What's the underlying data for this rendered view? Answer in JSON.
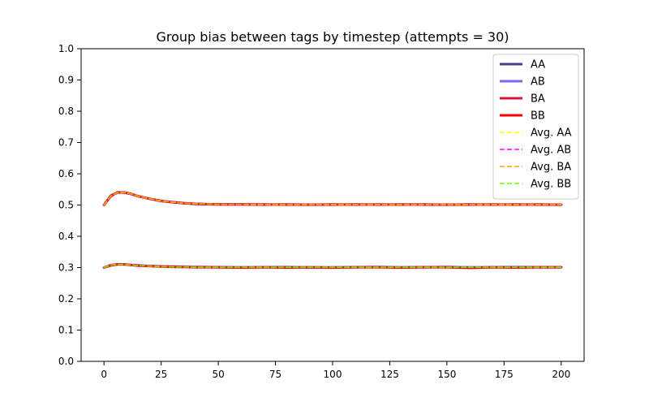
{
  "chart_data": {
    "type": "line",
    "title": "Group bias between tags by timestep (attempts = 30)",
    "xlabel": "",
    "ylabel": "",
    "xlim": [
      -10,
      210
    ],
    "ylim": [
      0.0,
      1.0
    ],
    "xticks": [
      0,
      25,
      50,
      75,
      100,
      125,
      150,
      175,
      200
    ],
    "xtick_labels": [
      "0",
      "25",
      "50",
      "75",
      "100",
      "125",
      "150",
      "175",
      "200"
    ],
    "yticks": [
      0.0,
      0.1,
      0.2,
      0.3,
      0.4,
      0.5,
      0.6,
      0.7,
      0.8,
      0.9,
      1.0
    ],
    "ytick_labels": [
      "0.0",
      "0.1",
      "0.2",
      "0.3",
      "0.4",
      "0.5",
      "0.6",
      "0.7",
      "0.8",
      "0.9",
      "1.0"
    ],
    "grid": false,
    "legend_position": "top-right",
    "x": [
      0,
      3,
      6,
      9,
      12,
      15,
      20,
      25,
      30,
      35,
      40,
      50,
      60,
      70,
      80,
      90,
      100,
      110,
      120,
      130,
      140,
      150,
      160,
      170,
      180,
      190,
      200
    ],
    "series": [
      {
        "name": "AA",
        "style": "solid",
        "color": "#483D8B",
        "values": [
          0.5,
          0.53,
          0.54,
          0.54,
          0.535,
          0.528,
          0.52,
          0.513,
          0.509,
          0.506,
          0.503,
          0.502,
          0.502,
          0.501,
          0.502,
          0.501,
          0.501,
          0.502,
          0.501,
          0.502,
          0.501,
          0.501,
          0.502,
          0.501,
          0.502,
          0.501,
          0.501
        ]
      },
      {
        "name": "AB",
        "style": "solid",
        "color": "#7B68EE",
        "values": [
          0.3,
          0.308,
          0.311,
          0.31,
          0.308,
          0.307,
          0.305,
          0.304,
          0.303,
          0.302,
          0.302,
          0.301,
          0.301,
          0.301,
          0.302,
          0.3,
          0.301,
          0.301,
          0.302,
          0.301,
          0.301,
          0.302,
          0.301,
          0.301,
          0.302,
          0.301,
          0.301
        ]
      },
      {
        "name": "BA",
        "style": "solid",
        "color": "#DC143C",
        "values": [
          0.5,
          0.528,
          0.541,
          0.54,
          0.535,
          0.528,
          0.52,
          0.513,
          0.509,
          0.506,
          0.504,
          0.502,
          0.502,
          0.502,
          0.501,
          0.501,
          0.502,
          0.501,
          0.502,
          0.501,
          0.502,
          0.501,
          0.501,
          0.502,
          0.501,
          0.502,
          0.501
        ]
      },
      {
        "name": "BB",
        "style": "solid",
        "color": "#FF0000",
        "values": [
          0.3,
          0.307,
          0.31,
          0.31,
          0.308,
          0.306,
          0.305,
          0.303,
          0.302,
          0.302,
          0.301,
          0.301,
          0.3,
          0.301,
          0.3,
          0.301,
          0.3,
          0.301,
          0.301,
          0.3,
          0.301,
          0.301,
          0.299,
          0.301,
          0.3,
          0.301,
          0.301
        ]
      },
      {
        "name": "Avg. AA",
        "style": "dashed",
        "color": "#FFFF00",
        "values": [
          0.5,
          0.529,
          0.54,
          0.54,
          0.535,
          0.528,
          0.52,
          0.513,
          0.509,
          0.506,
          0.504,
          0.502,
          0.502,
          0.501,
          0.501,
          0.501,
          0.501,
          0.501,
          0.501,
          0.501,
          0.501,
          0.501,
          0.501,
          0.501,
          0.501,
          0.501,
          0.501
        ]
      },
      {
        "name": "Avg. AB",
        "style": "dashed",
        "color": "#FF00FF",
        "values": [
          0.3,
          0.308,
          0.31,
          0.31,
          0.308,
          0.306,
          0.305,
          0.303,
          0.302,
          0.302,
          0.301,
          0.301,
          0.301,
          0.301,
          0.301,
          0.301,
          0.301,
          0.301,
          0.301,
          0.301,
          0.301,
          0.301,
          0.301,
          0.301,
          0.301,
          0.301,
          0.301
        ]
      },
      {
        "name": "Avg. BA",
        "style": "dashed",
        "color": "#FFA500",
        "values": [
          0.5,
          0.529,
          0.54,
          0.54,
          0.535,
          0.528,
          0.52,
          0.513,
          0.509,
          0.506,
          0.504,
          0.502,
          0.502,
          0.501,
          0.501,
          0.501,
          0.501,
          0.501,
          0.501,
          0.501,
          0.501,
          0.501,
          0.501,
          0.501,
          0.501,
          0.501,
          0.501
        ]
      },
      {
        "name": "Avg. BB",
        "style": "dashed",
        "color": "#7CFC00",
        "values": [
          0.3,
          0.308,
          0.31,
          0.31,
          0.308,
          0.306,
          0.305,
          0.303,
          0.302,
          0.302,
          0.301,
          0.301,
          0.301,
          0.301,
          0.301,
          0.301,
          0.301,
          0.301,
          0.301,
          0.301,
          0.301,
          0.301,
          0.301,
          0.301,
          0.301,
          0.301,
          0.301
        ]
      }
    ]
  }
}
